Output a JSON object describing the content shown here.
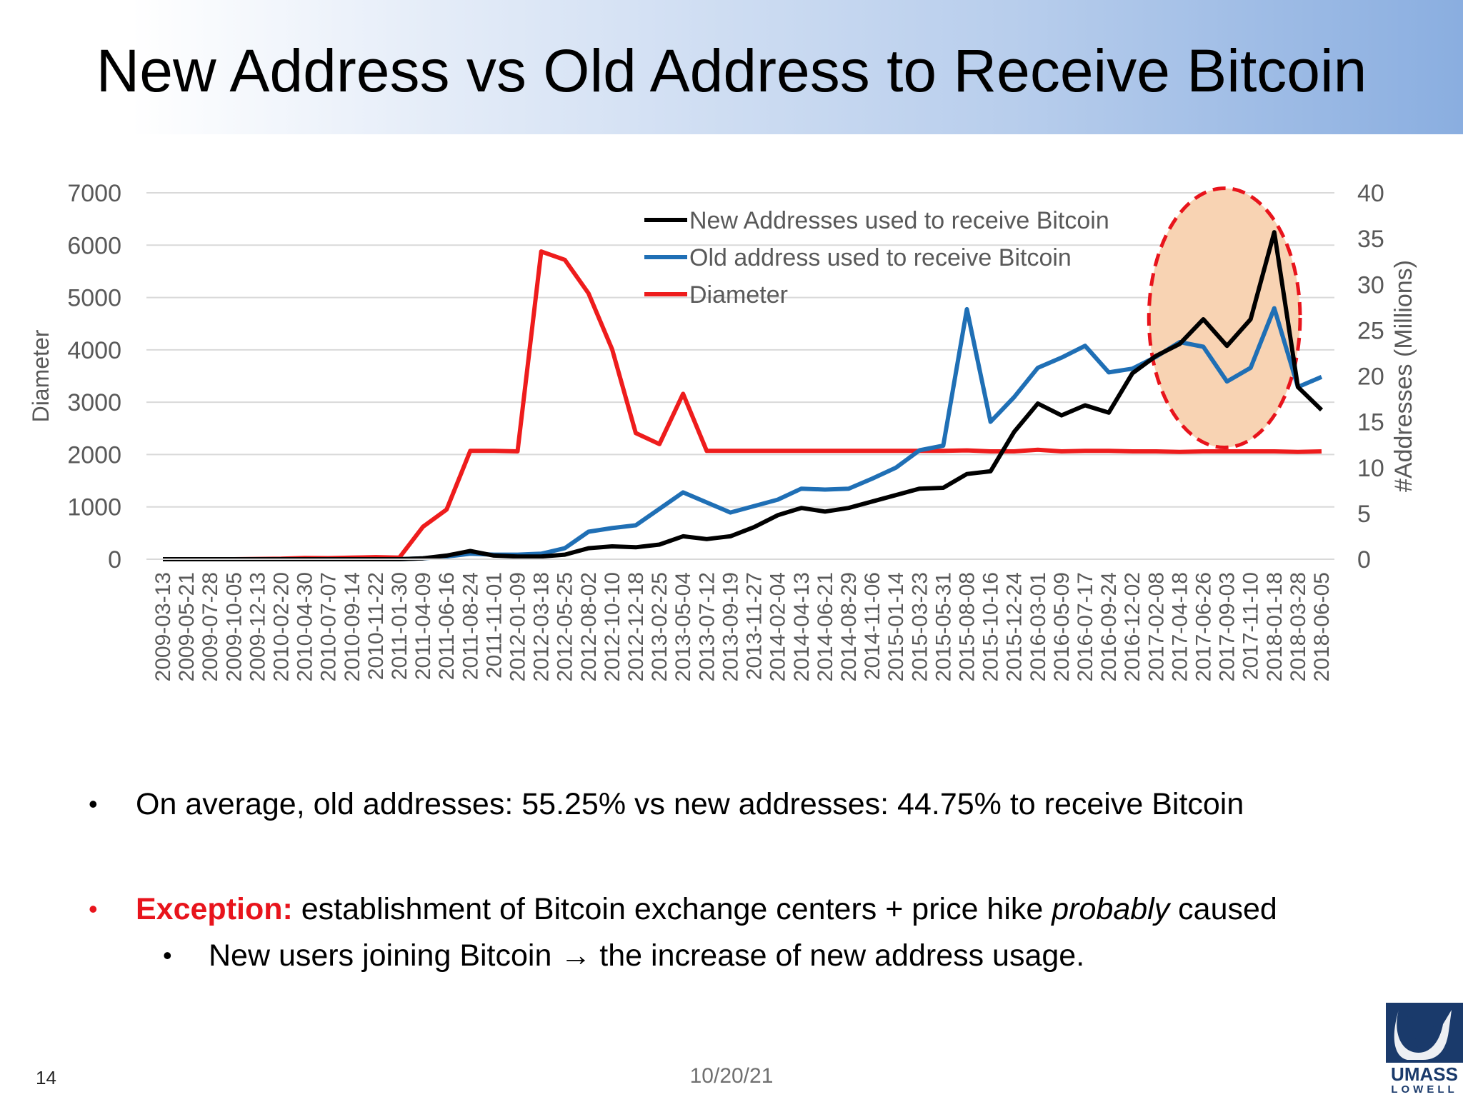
{
  "slide": {
    "title": "New Address vs Old Address to Receive Bitcoin",
    "slide_number": "14",
    "date": "10/20/21",
    "logo_text": [
      "UMASS",
      "LOWELL"
    ]
  },
  "bullets": {
    "b1": "On average, old addresses: 55.25% vs new addresses:  44.75% to receive Bitcoin",
    "b2_label": "Exception:",
    "b2_text_pre": " establishment of Bitcoin exchange centers + price hike ",
    "b2_italic": "probably",
    "b2_text_post": " caused",
    "b3_pre": "New users joining Bitcoin ",
    "b3_arrow": "→",
    "b3_post": " the increase of new address usage."
  },
  "colors": {
    "new_series": "#000000",
    "old_series": "#1f6fb5",
    "diameter_series": "#ee1c1c",
    "highlight_fill": "#f8d3b3",
    "highlight_stroke": "#e8141c"
  },
  "chart_data": {
    "type": "line",
    "ylabel_left": "Diameter",
    "ylabel_right": "#Addresses (Millions)",
    "ylim_left": [
      0,
      7000
    ],
    "ylim_right": [
      0,
      40
    ],
    "yticks_left": [
      0,
      1000,
      2000,
      3000,
      4000,
      5000,
      6000,
      7000
    ],
    "yticks_right": [
      0,
      5,
      10,
      15,
      20,
      25,
      30,
      35,
      40
    ],
    "grid": true,
    "legend_position": "top-center",
    "x": [
      "2009-03-13",
      "2009-05-21",
      "2009-07-28",
      "2009-10-05",
      "2009-12-13",
      "2010-02-20",
      "2010-04-30",
      "2010-07-07",
      "2010-09-14",
      "2010-11-22",
      "2011-01-30",
      "2011-04-09",
      "2011-06-16",
      "2011-08-24",
      "2011-11-01",
      "2012-01-09",
      "2012-03-18",
      "2012-05-25",
      "2012-08-02",
      "2012-10-10",
      "2012-12-18",
      "2013-02-25",
      "2013-05-04",
      "2013-07-12",
      "2013-09-19",
      "2013-11-27",
      "2014-02-04",
      "2014-04-13",
      "2014-06-21",
      "2014-08-29",
      "2014-11-06",
      "2015-01-14",
      "2015-03-23",
      "2015-05-31",
      "2015-08-08",
      "2015-10-16",
      "2015-12-24",
      "2016-03-01",
      "2016-05-09",
      "2016-07-17",
      "2016-09-24",
      "2016-12-02",
      "2017-02-08",
      "2017-04-18",
      "2017-06-26",
      "2017-09-03",
      "2017-11-10",
      "2018-01-18",
      "2018-03-28",
      "2018-06-05"
    ],
    "series": [
      {
        "name": "New Addresses used to receive Bitcoin",
        "axis": "right",
        "values": [
          0,
          0,
          0,
          0,
          0,
          0,
          0,
          0,
          0,
          0,
          0,
          0.1,
          0.4,
          0.9,
          0.4,
          0.3,
          0.3,
          0.5,
          1.2,
          1.4,
          1.3,
          1.6,
          2.5,
          2.2,
          2.5,
          3.5,
          4.8,
          5.6,
          5.2,
          5.6,
          6.3,
          7.0,
          7.7,
          7.8,
          9.3,
          9.6,
          13.9,
          17.0,
          15.7,
          16.8,
          16.0,
          20.3,
          22.2,
          23.5,
          26.2,
          23.3,
          26.2,
          35.7,
          18.8,
          16.3
        ]
      },
      {
        "name": "Old address used to receive Bitcoin",
        "axis": "right",
        "values": [
          0,
          0,
          0,
          0,
          0,
          0,
          0,
          0,
          0,
          0,
          0,
          0.1,
          0.3,
          0.6,
          0.5,
          0.5,
          0.6,
          1.2,
          3.0,
          3.4,
          3.7,
          5.5,
          7.3,
          6.2,
          5.1,
          5.8,
          6.5,
          7.7,
          7.6,
          7.7,
          8.8,
          10.0,
          11.9,
          12.4,
          27.3,
          15.0,
          17.7,
          20.9,
          22.0,
          23.3,
          20.4,
          20.8,
          22.1,
          23.7,
          23.2,
          19.4,
          20.9,
          27.4,
          18.8,
          19.9
        ]
      },
      {
        "name": "Diameter",
        "axis": "left",
        "values": [
          0,
          0,
          0,
          0,
          5,
          10,
          25,
          20,
          30,
          40,
          30,
          620,
          950,
          2070,
          2070,
          2060,
          5880,
          5720,
          5080,
          4010,
          2410,
          2200,
          3160,
          2070,
          2070,
          2070,
          2070,
          2070,
          2070,
          2070,
          2070,
          2070,
          2070,
          2070,
          2080,
          2060,
          2060,
          2090,
          2060,
          2070,
          2070,
          2060,
          2060,
          2050,
          2060,
          2060,
          2060,
          2060,
          2050,
          2060
        ]
      }
    ],
    "highlight": {
      "shape": "dashed-ellipse",
      "x_range": [
        "2017-02-08",
        "2018-06-05"
      ]
    }
  }
}
